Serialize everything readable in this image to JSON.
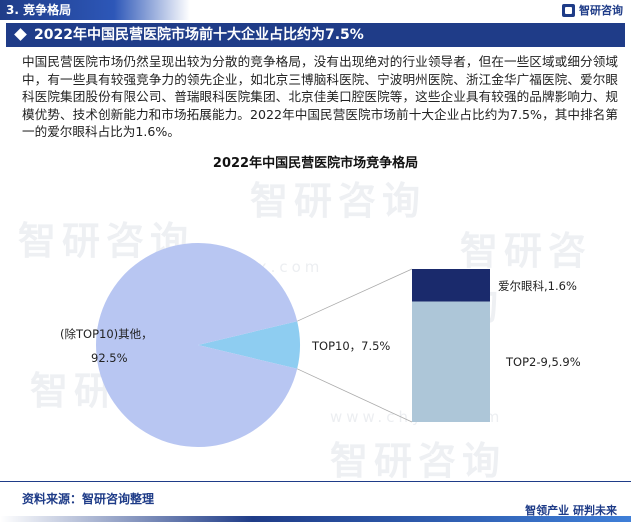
{
  "header": {
    "section_label": "3. 竞争格局",
    "logo_text": "智研咨询",
    "page_title": "2022年中国民营医院市场前十大企业占比约为7.5%"
  },
  "intro_text": "中国民营医院市场仍然呈现出较为分散的竞争格局，没有出现绝对的行业领导者，但在一些区域或细分领域中，有一些具有较强竞争力的领先企业，如北京三博脑科医院、宁波明州医院、浙江金华广福医院、爱尔眼科医院集团股份有限公司、普瑞眼科医院集团、北京佳美口腔医院等，这些企业具有较强的品牌影响力、规模优势、技术创新能力和市场拓展能力。2022年中国民营医院市场前十大企业占比约为7.5%，其中排名第一的爱尔眼科占比为1.6%。",
  "watermark": {
    "text": "智研咨询",
    "sub": "www.chyxx.com"
  },
  "chart_data": {
    "type": "pie",
    "title": "2022年中国民营医院市场竞争格局",
    "pie": {
      "slices": [
        {
          "label": "(除TOP10)其他，",
          "value": 92.5,
          "value_label": "92.5%",
          "color": "#b8c6f2"
        },
        {
          "label": "TOP10，7.5%",
          "value": 7.5,
          "color": "#8ecdf1"
        }
      ]
    },
    "breakdown_bar": {
      "parent": "TOP10",
      "segments": [
        {
          "label": "爱尔眼科,1.6%",
          "value": 1.6,
          "color": "#1a2a6c"
        },
        {
          "label": "TOP2-9,5.9%",
          "value": 5.9,
          "color": "#adc6d8"
        }
      ]
    }
  },
  "footer": {
    "source": "资料来源：智研咨询整理",
    "slogan": "智领产业  研判未来"
  }
}
